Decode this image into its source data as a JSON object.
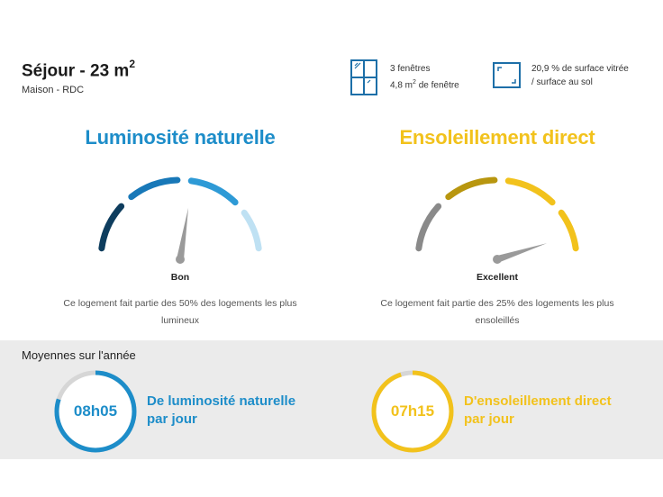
{
  "room": {
    "title": "Séjour - 23 m",
    "title_sup": "2",
    "subtitle": "Maison - RDC"
  },
  "windows": {
    "icon": "window-icon",
    "line1": "3 fenêtres",
    "line2_prefix": "4,8 m",
    "line2_sup": "2",
    "line2_suffix": " de fenêtre"
  },
  "surface": {
    "icon": "surface-ratio-icon",
    "line1": "20,9 % de surface vitrée",
    "line2": "/ surface au sol"
  },
  "luminosity": {
    "title": "Luminosité naturelle",
    "rating": "Bon",
    "needle_level": 0.55,
    "description_line1": "Ce logement fait partie des 50% des logements les plus",
    "description_line2": "lumineux",
    "colors": [
      "#0e3d5e",
      "#1878b8",
      "#2e9ad6",
      "#bfe1f3"
    ]
  },
  "sunshine": {
    "title": "Ensoleillement direct",
    "rating": "Excellent",
    "needle_level": 0.9,
    "description_line1": "Ce logement fait partie des 25% des logements les plus",
    "description_line2": "ensoleillés",
    "colors": [
      "#8a8a8a",
      "#b8960f",
      "#f2c21c",
      "#f2c21c"
    ]
  },
  "yearly": {
    "title": "Moyennes sur l'année",
    "luminosity_value": "08h05",
    "luminosity_fraction": 0.8,
    "luminosity_label_1": "De luminosité naturelle",
    "luminosity_label_2": "par jour",
    "sunshine_value": "07h15",
    "sunshine_fraction": 0.95,
    "sunshine_label_1": "D'ensoleillement direct",
    "sunshine_label_2": "par jour"
  }
}
